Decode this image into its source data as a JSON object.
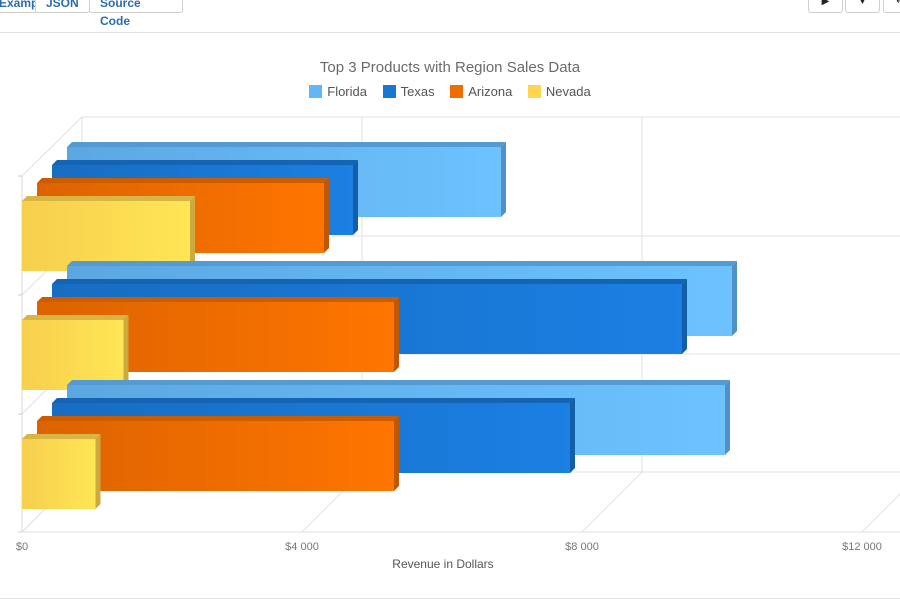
{
  "toolbar": {
    "tabs": [
      "Example",
      "JSON",
      "Source Code"
    ],
    "buttons": [
      {
        "icon": "play-icon"
      },
      {
        "icon": "download-icon"
      },
      {
        "icon": "edit-icon"
      }
    ]
  },
  "chart_data": {
    "type": "bar",
    "orientation": "horizontal",
    "style": "3d",
    "title": "Top 3 Products with Region Sales Data",
    "xlabel": "Revenue in Dollars",
    "ylabel": "",
    "xlim": [
      0,
      12000
    ],
    "x_ticks": [
      "$0",
      "$4 000",
      "$8 000",
      "$12 000"
    ],
    "grid": true,
    "legend_position": "top",
    "categories": [
      "",
      "",
      ""
    ],
    "series": [
      {
        "name": "Florida",
        "color": "#64b5f6",
        "values": [
          6200,
          9500,
          9400
        ]
      },
      {
        "name": "Texas",
        "color": "#1976d2",
        "values": [
          4300,
          9000,
          7400
        ]
      },
      {
        "name": "Arizona",
        "color": "#ef6c00",
        "values": [
          4100,
          5100,
          5100
        ]
      },
      {
        "name": "Nevada",
        "color": "#ffd54f",
        "values": [
          2400,
          1450,
          1050
        ]
      }
    ]
  }
}
